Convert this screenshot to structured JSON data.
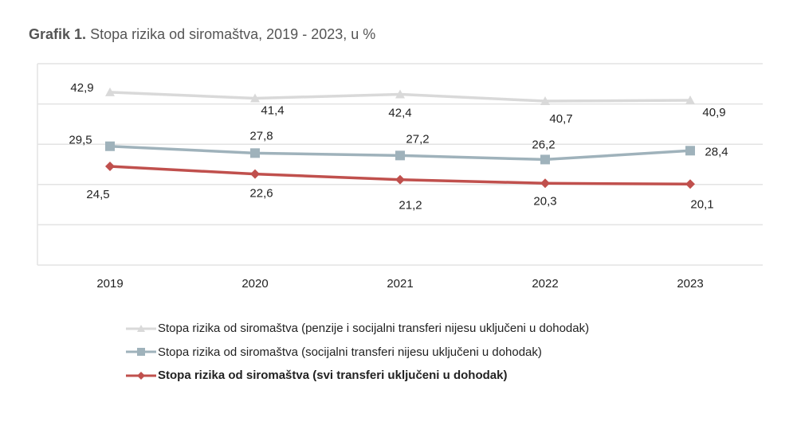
{
  "title": {
    "prefix": "Grafik 1.",
    "text": "Stopa rizika od siromaštva, 2019 - 2023, u %"
  },
  "chart_data": {
    "type": "line",
    "title": "Grafik 1. Stopa rizika od siromaštva, 2019 - 2023, u %",
    "xlabel": "",
    "ylabel": "",
    "x": [
      "2019",
      "2020",
      "2021",
      "2022",
      "2023"
    ],
    "ylim": [
      0,
      50
    ],
    "yticks": [
      0,
      10,
      20,
      30,
      40,
      50
    ],
    "y_tick_labels_visible": false,
    "grid": true,
    "legend_position": "bottom",
    "series": [
      {
        "name": "Stopa rizika od siromaštva (penzije i socijalni transferi nijesu uključeni u dohodak)",
        "values": [
          42.9,
          41.4,
          42.4,
          40.7,
          40.9
        ],
        "labels": [
          "42,9",
          "41,4",
          "42,4",
          "40,7",
          "40,9"
        ],
        "color": "#d9d9d9",
        "marker": "triangle",
        "bold_legend": false
      },
      {
        "name": "Stopa rizika od siromaštva (socijalni transferi nijesu uključeni u dohodak)",
        "values": [
          29.5,
          27.8,
          27.2,
          26.2,
          28.4
        ],
        "labels": [
          "29,5",
          "27,8",
          "27,2",
          "26,2",
          "28,4"
        ],
        "color": "#9fb2bb",
        "marker": "square",
        "bold_legend": false
      },
      {
        "name": "Stopa rizika od siromaštva (svi transferi uključeni u dohodak)",
        "values": [
          24.5,
          22.6,
          21.2,
          20.3,
          20.1
        ],
        "labels": [
          "24,5",
          "22,6",
          "21,2",
          "20,3",
          "20,1"
        ],
        "color": "#c0504d",
        "marker": "diamond",
        "bold_legend": true
      }
    ]
  }
}
